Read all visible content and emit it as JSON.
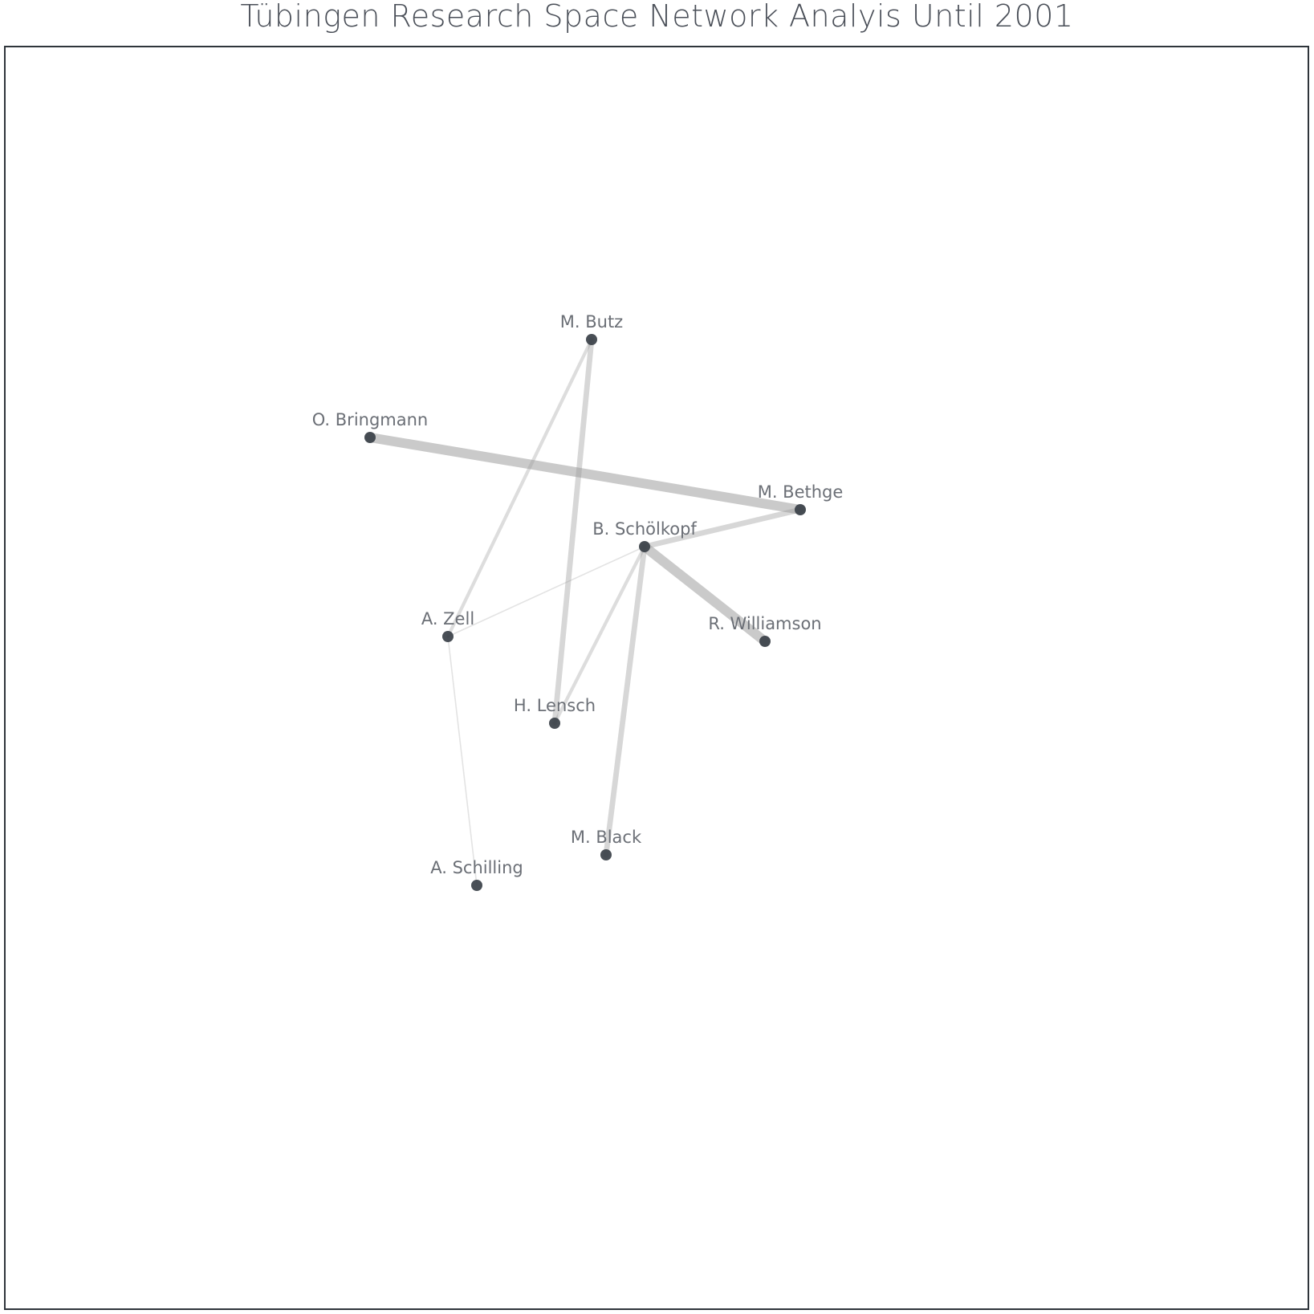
{
  "title": "Tübingen Research Space Network Analyis Until 2001",
  "colors": {
    "node": "#3a4048",
    "edge": "#9a9a9a",
    "frame": "#2f353b",
    "label": "#6b6f76"
  },
  "nodes": [
    {
      "id": "butz",
      "label": "M. Butz"
    },
    {
      "id": "bringmann",
      "label": "O. Bringmann"
    },
    {
      "id": "bethge",
      "label": "M. Bethge"
    },
    {
      "id": "schoelkopf",
      "label": "B. Schölkopf"
    },
    {
      "id": "zell",
      "label": "A. Zell"
    },
    {
      "id": "williamson",
      "label": "R. Williamson"
    },
    {
      "id": "lensch",
      "label": "H. Lensch"
    },
    {
      "id": "black",
      "label": "M. Black"
    },
    {
      "id": "schilling",
      "label": "A. Schilling"
    }
  ],
  "edges": [
    {
      "source": "bringmann",
      "target": "bethge",
      "weight": 5
    },
    {
      "source": "schoelkopf",
      "target": "williamson",
      "weight": 5
    },
    {
      "source": "butz",
      "target": "lensch",
      "weight": 3
    },
    {
      "source": "schoelkopf",
      "target": "bethge",
      "weight": 3
    },
    {
      "source": "schoelkopf",
      "target": "black",
      "weight": 3
    },
    {
      "source": "butz",
      "target": "zell",
      "weight": 2
    },
    {
      "source": "schoelkopf",
      "target": "lensch",
      "weight": 2
    },
    {
      "source": "schoelkopf",
      "target": "zell",
      "weight": 1
    },
    {
      "source": "zell",
      "target": "schilling",
      "weight": 1
    }
  ]
}
